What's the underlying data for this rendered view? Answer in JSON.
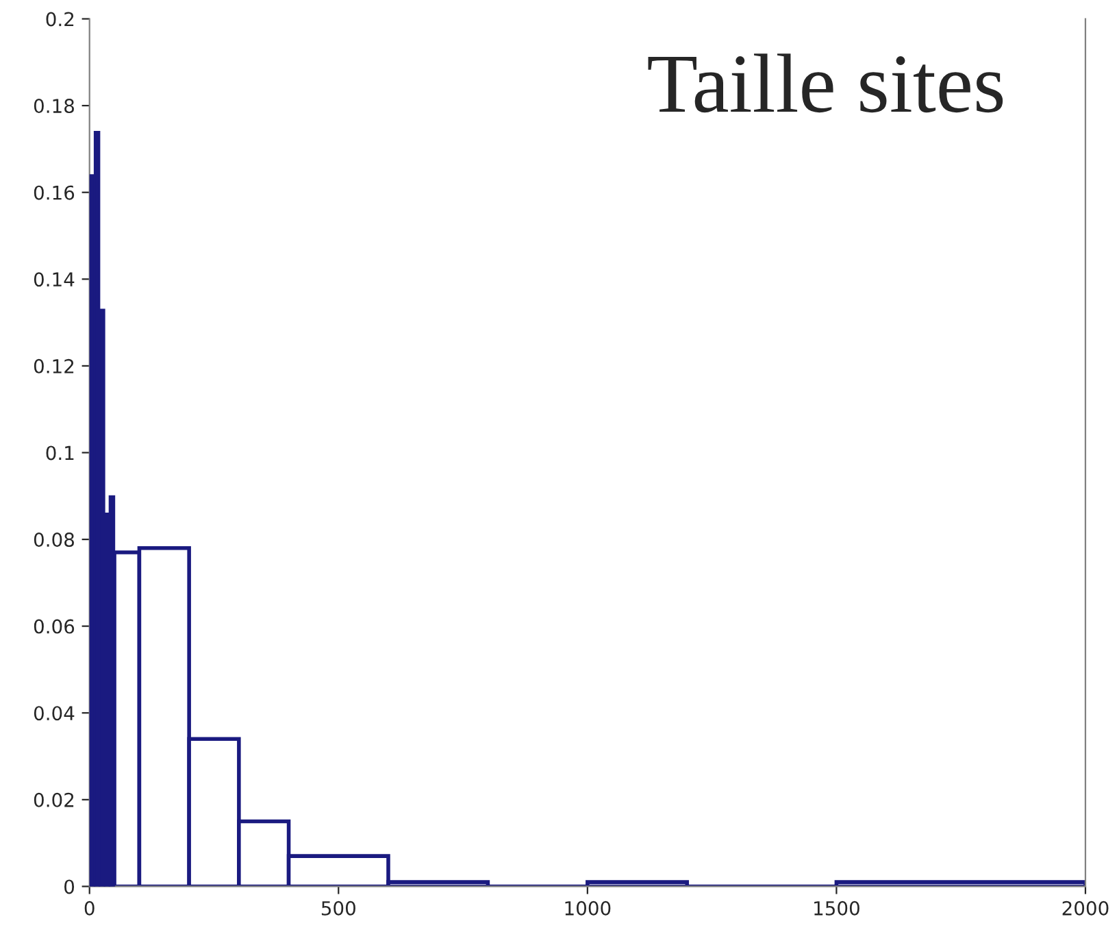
{
  "chart_data": {
    "type": "histogram",
    "title": "Taille sites",
    "bins": [
      0,
      10,
      20,
      30,
      40,
      50,
      100,
      200,
      300,
      400,
      600,
      800,
      1000,
      1200,
      1500,
      2000
    ],
    "values": [
      0.164,
      0.174,
      0.133,
      0.086,
      0.09,
      0.077,
      0.078,
      0.034,
      0.015,
      0.007,
      0.001,
      0,
      0.001,
      0,
      0.001
    ],
    "color": "#1a1a80",
    "xlim": [
      0,
      2000
    ],
    "xticks": [
      0,
      500,
      1000,
      1500,
      2000
    ],
    "ylim": [
      0,
      0.2
    ],
    "yticks": [
      0,
      0.02,
      0.04,
      0.06,
      0.08,
      0.1,
      0.12,
      0.14,
      0.16,
      0.18,
      0.2
    ],
    "grid": false
  }
}
